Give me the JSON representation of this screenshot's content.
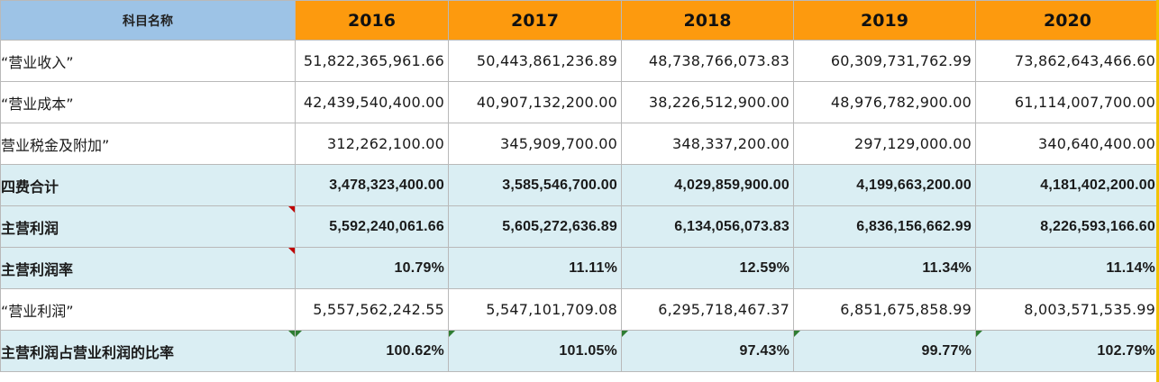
{
  "header": {
    "name_col": "科目名称",
    "years": [
      "2016",
      "2017",
      "2018",
      "2019",
      "2020"
    ]
  },
  "rows": [
    {
      "label": "“营业收入”",
      "values": [
        "51,822,365,961.66",
        "50,443,861,236.89",
        "48,738,766,073.83",
        "60,309,731,762.99",
        "73,862,643,466.60"
      ]
    },
    {
      "label": "“营业成本”",
      "values": [
        "42,439,540,400.00",
        "40,907,132,200.00",
        "38,226,512,900.00",
        "48,976,782,900.00",
        "61,114,007,700.00"
      ]
    },
    {
      "label": "营业税金及附加”",
      "values": [
        "312,262,100.00",
        "345,909,700.00",
        "348,337,200.00",
        "297,129,000.00",
        "340,640,400.00"
      ]
    },
    {
      "label": "四费合计",
      "values": [
        "3,478,323,400.00",
        "3,585,546,700.00",
        "4,029,859,900.00",
        "4,199,663,200.00",
        "4,181,402,200.00"
      ]
    },
    {
      "label": "主营利润",
      "values": [
        "5,592,240,061.66",
        "5,605,272,636.89",
        "6,134,056,073.83",
        "6,836,156,662.99",
        "8,226,593,166.60"
      ]
    },
    {
      "label": "主营利润率",
      "values": [
        "10.79%",
        "11.11%",
        "12.59%",
        "11.34%",
        "11.14%"
      ]
    },
    {
      "label": "“营业利润”",
      "values": [
        "5,557,562,242.55",
        "5,547,101,709.08",
        "6,295,718,467.37",
        "6,851,675,858.99",
        "8,003,571,535.99"
      ]
    },
    {
      "label": "主营利润占营业利润的比率",
      "values": [
        "100.62%",
        "101.05%",
        "97.43%",
        "99.77%",
        "102.79%"
      ]
    }
  ]
}
